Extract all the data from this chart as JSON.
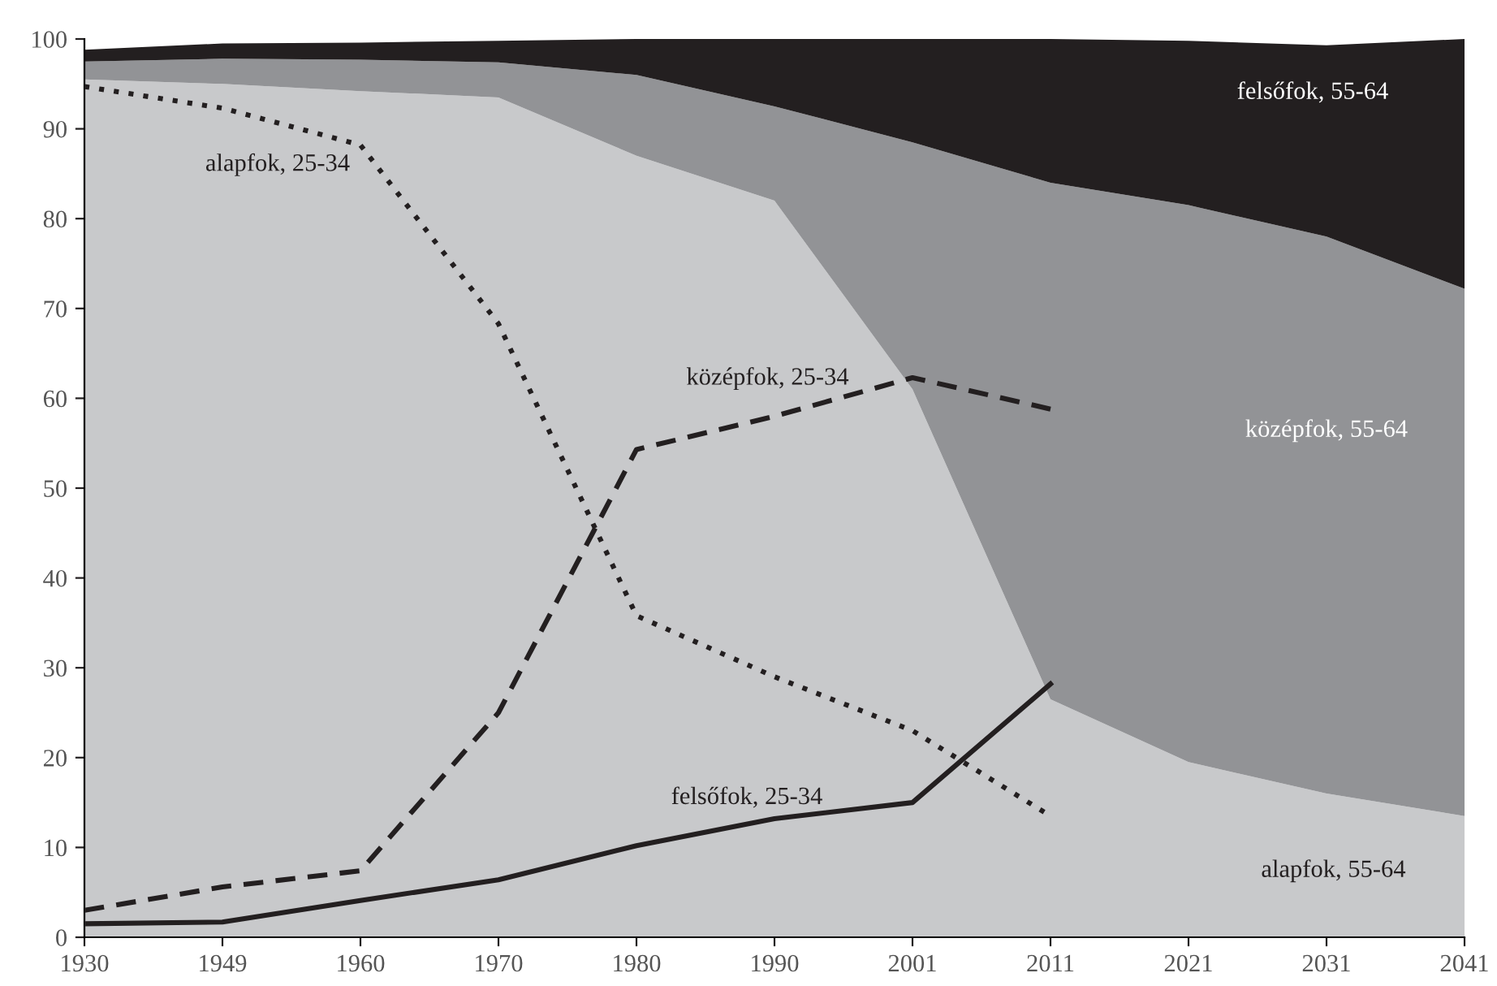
{
  "chart_data": {
    "type": "area",
    "stacked": true,
    "categories": [
      "1930",
      "1949",
      "1960",
      "1970",
      "1980",
      "1990",
      "2001",
      "2011",
      "2021",
      "2031",
      "2041"
    ],
    "series": [
      {
        "name": "alapfok, 55-64",
        "color": "#c8c9cb",
        "values": [
          95.5,
          95,
          94.2,
          93.5,
          87,
          82,
          61,
          26.5,
          19.5,
          16,
          13.5
        ]
      },
      {
        "name": "középfok, 55-64",
        "color": "#929396",
        "values": [
          2.0,
          2.8,
          3.5,
          3.9,
          9.0,
          10.5,
          27.5,
          57.5,
          62,
          62,
          58.7
        ]
      },
      {
        "name": "felsőfok, 55-64",
        "color": "#231f20",
        "values": [
          1.3,
          1.7,
          1.9,
          2.4,
          4.0,
          7.5,
          11.5,
          16,
          18.3,
          21.3,
          27.8
        ]
      },
      {
        "name": "alapfok, 25-34",
        "type": "line",
        "color": "#231f20",
        "line_style": "dotted",
        "values": [
          94.7,
          92.3,
          88.2,
          68.3,
          35.8,
          29,
          23,
          13.5,
          null,
          null,
          null
        ]
      },
      {
        "name": "középfok, 25-34",
        "type": "line",
        "color": "#231f20",
        "line_style": "dashed",
        "values": [
          3.0,
          5.6,
          7.4,
          25,
          54.3,
          58,
          62.3,
          58.8,
          null,
          null,
          null
        ]
      },
      {
        "name": "felsőfok, 25-34",
        "type": "line",
        "color": "#231f20",
        "line_style": "solid",
        "values": [
          1.5,
          1.7,
          4.1,
          6.4,
          10.2,
          13.2,
          15,
          28.2,
          null,
          null,
          null
        ]
      }
    ],
    "ylim": [
      0,
      100
    ],
    "yticks": [
      0,
      10,
      20,
      30,
      40,
      50,
      60,
      70,
      80,
      90,
      100
    ],
    "grid": false,
    "legend": false
  }
}
